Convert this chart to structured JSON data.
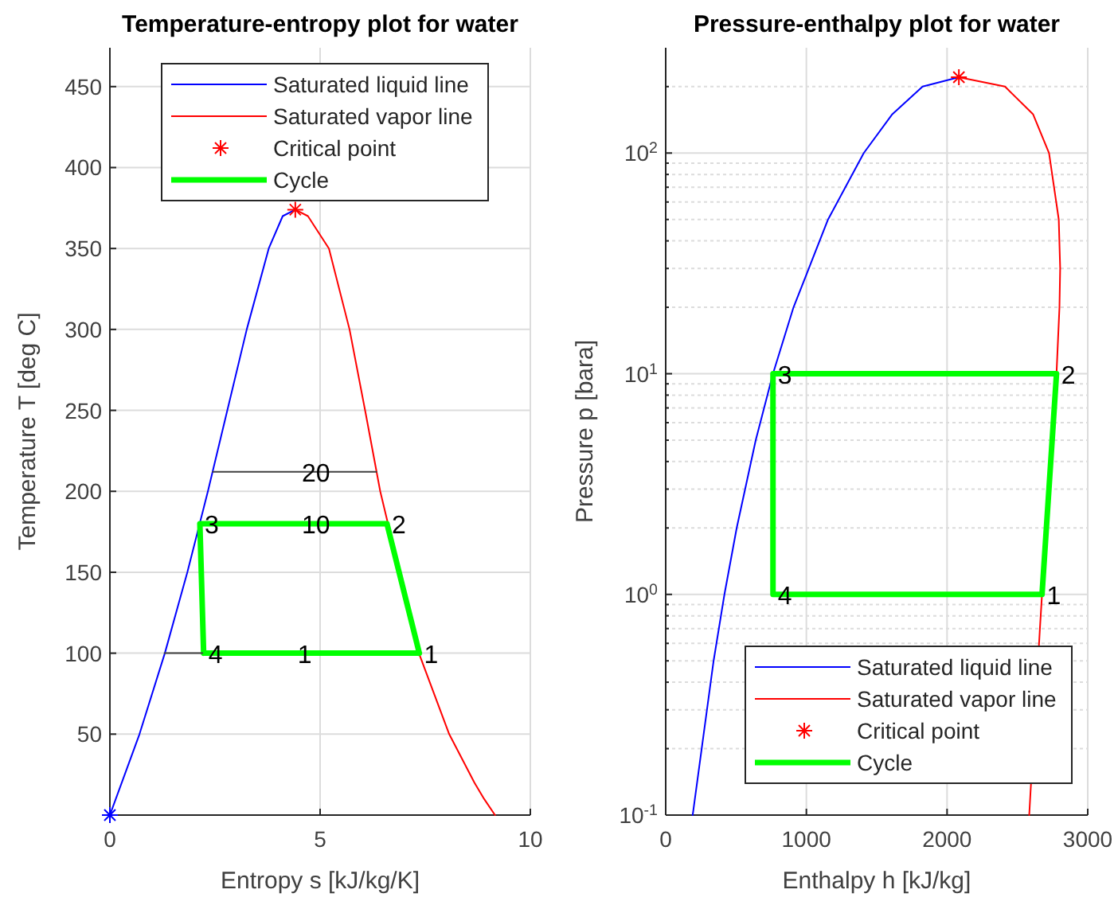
{
  "chart_data": [
    {
      "type": "line",
      "title": "Temperature-entropy plot for water",
      "xlabel": "Entropy s [kJ/kg/K]",
      "ylabel": "Temperature T [deg C]",
      "xlim": [
        0,
        10
      ],
      "xticks": [
        0,
        5,
        10
      ],
      "ylim": [
        0,
        474
      ],
      "yticks": [
        50,
        100,
        150,
        200,
        250,
        300,
        350,
        400,
        450
      ],
      "grid": true,
      "legend": "top",
      "series": [
        {
          "name": "Saturated liquid line",
          "color": "#0000ff",
          "x": [
            0,
            0.704,
            1.307,
            1.842,
            2.331,
            2.793,
            3.255,
            3.778,
            4.11,
            4.41
          ],
          "values": [
            0,
            50,
            100,
            150,
            200,
            250,
            300,
            350,
            370,
            374
          ]
        },
        {
          "name": "Saturated vapor line",
          "color": "#ff0000",
          "x": [
            4.41,
            4.71,
            5.21,
            5.7,
            6.07,
            6.43,
            7.35,
            8.07,
            8.67,
            8.9,
            9.16
          ],
          "values": [
            374,
            370,
            350,
            300,
            250,
            200,
            100,
            50,
            20,
            10,
            0
          ]
        },
        {
          "name": "Critical point",
          "type": "scatter",
          "marker": "cross",
          "color": "#ff0000",
          "x": [
            4.41
          ],
          "values": [
            374
          ]
        },
        {
          "name": "Cycle",
          "color": "#00ff00",
          "x": [
            7.36,
            6.59,
            2.14,
            2.23,
            7.36
          ],
          "values": [
            100,
            180,
            180,
            100,
            100
          ]
        },
        {
          "color": "#404040",
          "x": [
            1.3,
            2.2
          ],
          "values": [
            100,
            100
          ]
        },
        {
          "color": "#404040",
          "x": [
            2.45,
            6.34
          ],
          "values": [
            212,
            212
          ]
        },
        {
          "type": "scatter",
          "marker": "cross",
          "color": "#0000ff",
          "x": [
            0
          ],
          "values": [
            0
          ]
        }
      ],
      "annotations": [
        {
          "text": "1",
          "x": 7.36,
          "y": 100
        },
        {
          "text": "2",
          "x": 6.59,
          "y": 180
        },
        {
          "text": "3",
          "x": 2.14,
          "y": 180
        },
        {
          "text": "4",
          "x": 2.23,
          "y": 100
        },
        {
          "text": "1",
          "x": 4.35,
          "y": 100
        },
        {
          "text": "10",
          "x": 4.45,
          "y": 180
        },
        {
          "text": "20",
          "x": 4.45,
          "y": 212
        }
      ]
    },
    {
      "type": "line",
      "title": "Pressure-enthalpy plot for water",
      "xlabel": "Enthalpy h [kJ/kg]",
      "ylabel": "Pressure p [bara]",
      "log": "y",
      "xlim": [
        0,
        3000
      ],
      "xticks": [
        0,
        1000,
        2000,
        3000
      ],
      "ylim": [
        0.1,
        300
      ],
      "yticks": [
        {
          "value": 0.1,
          "label": "10$^{-1}$"
        },
        {
          "value": 0.2,
          "label": null
        },
        {
          "value": 0.3,
          "label": null
        },
        {
          "value": 0.4,
          "label": null
        },
        {
          "value": 0.5,
          "label": null
        },
        {
          "value": 0.6,
          "label": null
        },
        {
          "value": 0.7,
          "label": null
        },
        {
          "value": 0.8,
          "label": null
        },
        {
          "value": 0.9,
          "label": null
        },
        {
          "value": 1,
          "label": "10$^{0}$"
        },
        {
          "value": 2,
          "label": null
        },
        {
          "value": 3,
          "label": null
        },
        {
          "value": 4,
          "label": null
        },
        {
          "value": 5,
          "label": null
        },
        {
          "value": 6,
          "label": null
        },
        {
          "value": 7,
          "label": null
        },
        {
          "value": 8,
          "label": null
        },
        {
          "value": 9,
          "label": null
        },
        {
          "value": 10,
          "label": "10$^{1}$"
        },
        {
          "value": 20,
          "label": null
        },
        {
          "value": 30,
          "label": null
        },
        {
          "value": 40,
          "label": null
        },
        {
          "value": 50,
          "label": null
        },
        {
          "value": 60,
          "label": null
        },
        {
          "value": 70,
          "label": null
        },
        {
          "value": 80,
          "label": null
        },
        {
          "value": 90,
          "label": null
        },
        {
          "value": 100,
          "label": "10$^{2}$"
        },
        {
          "value": 200,
          "label": null
        }
      ],
      "grid": true,
      "legend": "bottom right",
      "series": [
        {
          "name": "Saturated liquid line",
          "color": "#0000ff",
          "x": [
            191.8,
            340.5,
            417.5,
            504.7,
            640,
            762.6,
            908.6,
            1154,
            1408,
            1611,
            1826,
            2084
          ],
          "values": [
            0.1,
            0.5,
            1,
            2,
            5,
            10,
            20,
            50,
            100,
            150,
            200,
            220.6
          ]
        },
        {
          "name": "Saturated vapor line",
          "color": "#ff0000",
          "x": [
            2084,
            2412,
            2611,
            2725,
            2794,
            2804,
            2799,
            2778,
            2675,
            2660,
            2584
          ],
          "values": [
            220.6,
            200,
            150,
            100,
            50,
            30,
            20,
            10,
            1,
            0.7,
            0.1
          ]
        },
        {
          "name": "Critical point",
          "type": "scatter",
          "marker": "cross",
          "color": "#ff0000",
          "x": [
            2084
          ],
          "values": [
            220.6
          ]
        },
        {
          "name": "Cycle",
          "color": "#00ff00",
          "x": [
            2675,
            2778,
            762.6,
            762.6,
            2675
          ],
          "values": [
            1,
            10,
            10,
            1,
            1
          ]
        }
      ],
      "annotations": [
        {
          "text": "1",
          "x": 2675,
          "y": 1
        },
        {
          "text": "2",
          "x": 2778,
          "y": 10
        },
        {
          "text": "3",
          "x": 762.6,
          "y": 10
        },
        {
          "text": "4",
          "x": 762.6,
          "y": 1
        }
      ]
    }
  ]
}
